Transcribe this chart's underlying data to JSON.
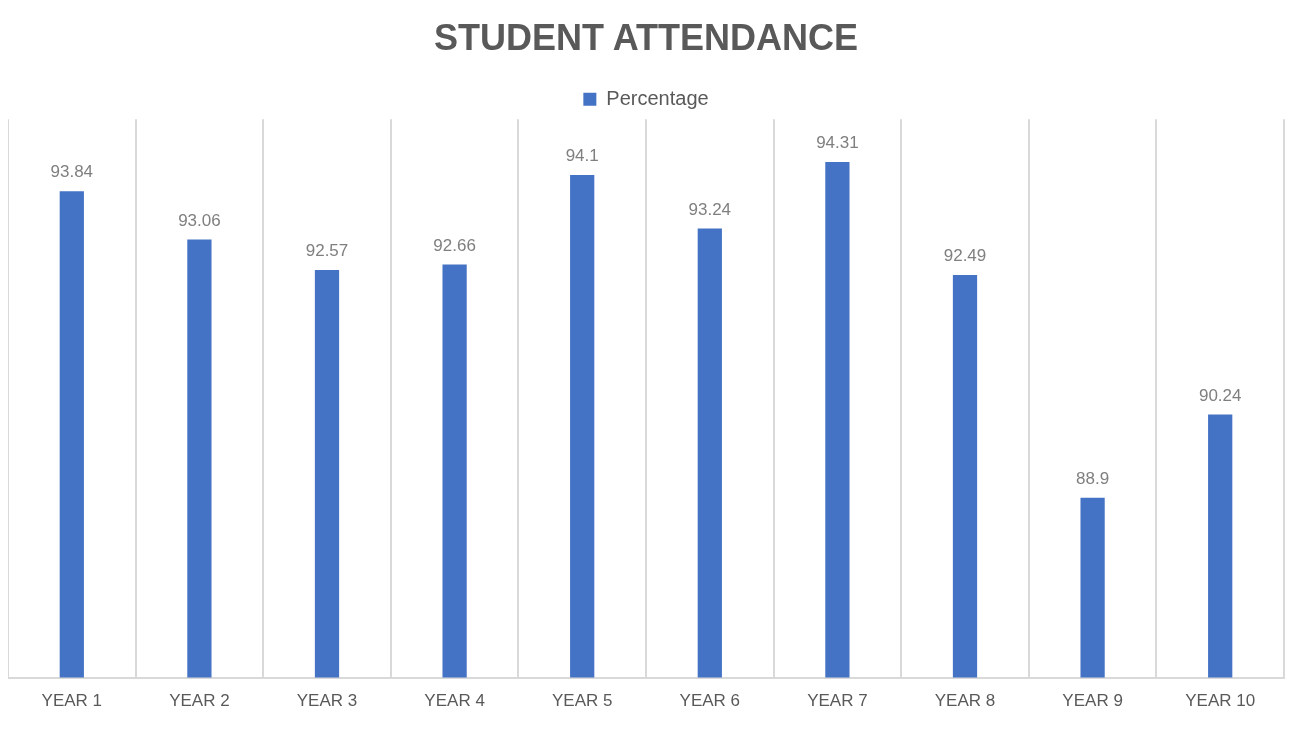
{
  "chart_data": {
    "type": "bar",
    "title": "STUDENT ATTENDANCE",
    "categories": [
      "YEAR 1",
      "YEAR 2",
      "YEAR 3",
      "YEAR 4",
      "YEAR 5",
      "YEAR 6",
      "YEAR 7",
      "YEAR 8",
      "YEAR 9",
      "YEAR 10"
    ],
    "series": [
      {
        "name": "Percentage",
        "color": "#4472c4",
        "values": [
          93.84,
          93.06,
          92.57,
          92.66,
          94.1,
          93.24,
          94.31,
          92.49,
          88.9,
          90.24
        ]
      }
    ],
    "ylim": [
      86,
      95
    ],
    "data_labels": true,
    "grid": "x",
    "legend": "top"
  }
}
